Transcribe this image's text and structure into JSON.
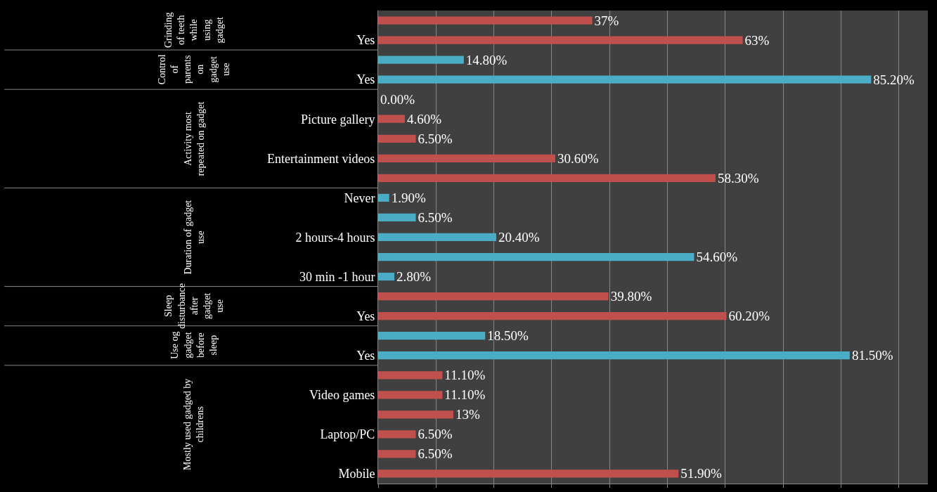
{
  "chart_data": {
    "type": "bar",
    "orientation": "horizontal",
    "categories": [
      null,
      "Yes",
      null,
      "Yes",
      null,
      "Picture gallery",
      null,
      "Entertainment videos",
      null,
      "Never",
      null,
      "2 hours-4 hours",
      null,
      "30 min -1 hour",
      null,
      "Yes",
      null,
      "Yes",
      null,
      "Video games",
      null,
      "Laptop/PC",
      null,
      "Mobile"
    ],
    "values": [
      37,
      63,
      14.8,
      85.2,
      0,
      4.6,
      6.5,
      30.6,
      58.3,
      1.9,
      6.5,
      20.4,
      54.6,
      2.8,
      39.8,
      60.2,
      18.5,
      81.5,
      11.1,
      11.1,
      13,
      6.5,
      6.5,
      51.9
    ],
    "value_labels": [
      "37%",
      "63%",
      "14.80%",
      "85.20%",
      "0.00%",
      "4.60%",
      "6.50%",
      "30.60%",
      "58.30%",
      "1.90%",
      "6.50%",
      "20.40%",
      "54.60%",
      "2.80%",
      "39.80%",
      "60.20%",
      "18.50%",
      "81.50%",
      "11.10%",
      "11.10%",
      "13%",
      "6.50%",
      "6.50%",
      "51.90%"
    ],
    "colors": [
      "#c0504d",
      "#c0504d",
      "#4bacc6",
      "#4bacc6",
      "#c0504d",
      "#c0504d",
      "#c0504d",
      "#c0504d",
      "#c0504d",
      "#4bacc6",
      "#4bacc6",
      "#4bacc6",
      "#4bacc6",
      "#4bacc6",
      "#c0504d",
      "#c0504d",
      "#4bacc6",
      "#4bacc6",
      "#c0504d",
      "#c0504d",
      "#c0504d",
      "#c0504d",
      "#c0504d",
      "#c0504d"
    ],
    "annotations": [
      "Grinding of teeth while using gadget",
      "Control of parents on gadget use",
      "Activity most repeated on gadget",
      "Duration of gadget use",
      "Sleep disturbance after gadget use",
      "Use og gadget before sleep",
      "Mostly used gadged by childrens"
    ],
    "xlim": [
      0,
      95
    ],
    "xticks": [
      {
        "value": 0,
        "label": null
      },
      {
        "value": 10,
        "label": null
      },
      {
        "value": 20,
        "label": null
      },
      {
        "value": 30,
        "label": null
      },
      {
        "value": 40,
        "label": null
      },
      {
        "value": 50,
        "label": null
      },
      {
        "value": 60,
        "label": null
      },
      {
        "value": 70,
        "label": null
      },
      {
        "value": 80,
        "label": null
      },
      {
        "value": 90,
        "label": null
      }
    ],
    "grid": "x",
    "tick_labels": "y"
  }
}
